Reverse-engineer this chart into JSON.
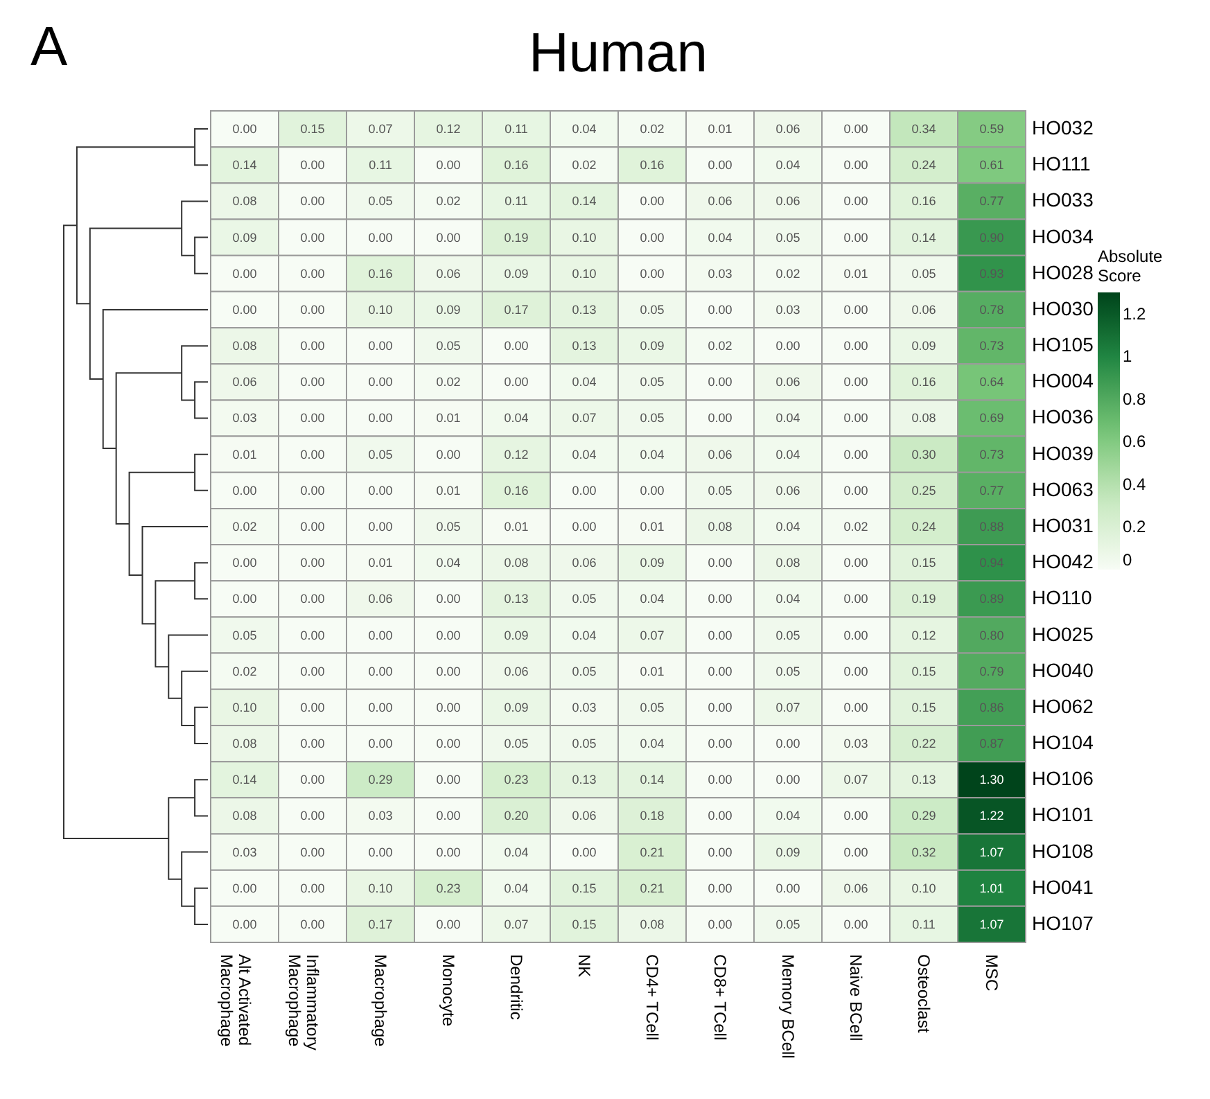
{
  "chart_data": {
    "type": "heatmap",
    "title": "Human",
    "annotations": [
      "A"
    ],
    "legend_title": "Absolute Score",
    "categories": [
      "Alt Activated Macrophage",
      "Inflammatory Macrophage",
      "Macrophage",
      "Monocyte",
      "Dendritic",
      "NK",
      "CD4+ TCell",
      "CD8+ TCell",
      "Memory BCell",
      "Naive BCell",
      "Osteoclast",
      "MSC"
    ],
    "y_categories": [
      "HO032",
      "HO111",
      "HO033",
      "HO034",
      "HO028",
      "HO030",
      "HO105",
      "HO004",
      "HO036",
      "HO039",
      "HO063",
      "HO031",
      "HO042",
      "HO110",
      "HO025",
      "HO040",
      "HO062",
      "HO104",
      "HO106",
      "HO101",
      "HO108",
      "HO041",
      "HO107"
    ],
    "cells": [
      [
        0.0,
        0.15,
        0.07,
        0.12,
        0.11,
        0.04,
        0.02,
        0.01,
        0.06,
        0.0,
        0.34,
        0.59
      ],
      [
        0.14,
        0.0,
        0.11,
        0.0,
        0.16,
        0.02,
        0.16,
        0.0,
        0.04,
        0.0,
        0.24,
        0.61
      ],
      [
        0.08,
        0.0,
        0.05,
        0.02,
        0.11,
        0.14,
        0.0,
        0.06,
        0.06,
        0.0,
        0.16,
        0.77
      ],
      [
        0.09,
        0.0,
        0.0,
        0.0,
        0.19,
        0.1,
        0.0,
        0.04,
        0.05,
        0.0,
        0.14,
        0.9
      ],
      [
        0.0,
        0.0,
        0.16,
        0.06,
        0.09,
        0.1,
        0.0,
        0.03,
        0.02,
        0.01,
        0.05,
        0.93
      ],
      [
        0.0,
        0.0,
        0.1,
        0.09,
        0.17,
        0.13,
        0.05,
        0.0,
        0.03,
        0.0,
        0.06,
        0.78
      ],
      [
        0.08,
        0.0,
        0.0,
        0.05,
        0.0,
        0.13,
        0.09,
        0.02,
        0.0,
        0.0,
        0.09,
        0.73
      ],
      [
        0.06,
        0.0,
        0.0,
        0.02,
        0.0,
        0.04,
        0.05,
        0.0,
        0.06,
        0.0,
        0.16,
        0.64
      ],
      [
        0.03,
        0.0,
        0.0,
        0.01,
        0.04,
        0.07,
        0.05,
        0.0,
        0.04,
        0.0,
        0.08,
        0.69
      ],
      [
        0.01,
        0.0,
        0.05,
        0.0,
        0.12,
        0.04,
        0.04,
        0.06,
        0.04,
        0.0,
        0.3,
        0.73
      ],
      [
        0.0,
        0.0,
        0.0,
        0.01,
        0.16,
        0.0,
        0.0,
        0.05,
        0.06,
        0.0,
        0.25,
        0.77
      ],
      [
        0.02,
        0.0,
        0.0,
        0.05,
        0.01,
        0.0,
        0.01,
        0.08,
        0.04,
        0.02,
        0.24,
        0.88
      ],
      [
        0.0,
        0.0,
        0.01,
        0.04,
        0.08,
        0.06,
        0.09,
        0.0,
        0.08,
        0.0,
        0.15,
        0.94
      ],
      [
        0.0,
        0.0,
        0.06,
        0.0,
        0.13,
        0.05,
        0.04,
        0.0,
        0.04,
        0.0,
        0.19,
        0.89
      ],
      [
        0.05,
        0.0,
        0.0,
        0.0,
        0.09,
        0.04,
        0.07,
        0.0,
        0.05,
        0.0,
        0.12,
        0.8
      ],
      [
        0.02,
        0.0,
        0.0,
        0.0,
        0.06,
        0.05,
        0.01,
        0.0,
        0.05,
        0.0,
        0.15,
        0.79
      ],
      [
        0.1,
        0.0,
        0.0,
        0.0,
        0.09,
        0.03,
        0.05,
        0.0,
        0.07,
        0.0,
        0.15,
        0.86
      ],
      [
        0.08,
        0.0,
        0.0,
        0.0,
        0.05,
        0.05,
        0.04,
        0.0,
        0.0,
        0.03,
        0.22,
        0.87
      ],
      [
        0.14,
        0.0,
        0.29,
        0.0,
        0.23,
        0.13,
        0.14,
        0.0,
        0.0,
        0.07,
        0.13,
        1.3
      ],
      [
        0.08,
        0.0,
        0.03,
        0.0,
        0.2,
        0.06,
        0.18,
        0.0,
        0.04,
        0.0,
        0.29,
        1.22
      ],
      [
        0.03,
        0.0,
        0.0,
        0.0,
        0.04,
        0.0,
        0.21,
        0.0,
        0.09,
        0.0,
        0.32,
        1.07
      ],
      [
        0.0,
        0.0,
        0.1,
        0.23,
        0.04,
        0.15,
        0.21,
        0.0,
        0.0,
        0.06,
        0.1,
        1.01
      ],
      [
        0.0,
        0.0,
        0.17,
        0.0,
        0.07,
        0.15,
        0.08,
        0.0,
        0.05,
        0.0,
        0.11,
        1.07
      ]
    ],
    "cell_labels": [
      [
        "0.00",
        "0.15",
        "0.07",
        "0.12",
        "0.11",
        "0.04",
        "0.02",
        "0.01",
        "0.06",
        "0.00",
        "0.34",
        "0.59"
      ],
      [
        "0.14",
        "0.00",
        "0.11",
        "0.00",
        "0.16",
        "0.02",
        "0.16",
        "0.00",
        "0.04",
        "0.00",
        "0.24",
        "0.61"
      ],
      [
        "0.08",
        "0.00",
        "0.05",
        "0.02",
        "0.11",
        "0.14",
        "0.00",
        "0.06",
        "0.06",
        "0.00",
        "0.16",
        "0.77"
      ],
      [
        "0.09",
        "0.00",
        "0.00",
        "0.00",
        "0.19",
        "0.10",
        "0.00",
        "0.04",
        "0.05",
        "0.00",
        "0.14",
        "0.90"
      ],
      [
        "0.00",
        "0.00",
        "0.16",
        "0.06",
        "0.09",
        "0.10",
        "0.00",
        "0.03",
        "0.02",
        "0.01",
        "0.05",
        "0.93"
      ],
      [
        "0.00",
        "0.00",
        "0.10",
        "0.09",
        "0.17",
        "0.13",
        "0.05",
        "0.00",
        "0.03",
        "0.00",
        "0.06",
        "0.78"
      ],
      [
        "0.08",
        "0.00",
        "0.00",
        "0.05",
        "0.00",
        "0.13",
        "0.09",
        "0.02",
        "0.00",
        "0.00",
        "0.09",
        "0.73"
      ],
      [
        "0.06",
        "0.00",
        "0.00",
        "0.02",
        "0.00",
        "0.04",
        "0.05",
        "0.00",
        "0.06",
        "0.00",
        "0.16",
        "0.64"
      ],
      [
        "0.03",
        "0.00",
        "0.00",
        "0.01",
        "0.04",
        "0.07",
        "0.05",
        "0.00",
        "0.04",
        "0.00",
        "0.08",
        "0.69"
      ],
      [
        "0.01",
        "0.00",
        "0.05",
        "0.00",
        "0.12",
        "0.04",
        "0.04",
        "0.06",
        "0.04",
        "0.00",
        "0.30",
        "0.73"
      ],
      [
        "0.00",
        "0.00",
        "0.00",
        "0.01",
        "0.16",
        "0.00",
        "0.00",
        "0.05",
        "0.06",
        "0.00",
        "0.25",
        "0.77"
      ],
      [
        "0.02",
        "0.00",
        "0.00",
        "0.05",
        "0.01",
        "0.00",
        "0.01",
        "0.08",
        "0.04",
        "0.02",
        "0.24",
        "0.88"
      ],
      [
        "0.00",
        "0.00",
        "0.01",
        "0.04",
        "0.08",
        "0.06",
        "0.09",
        "0.00",
        "0.08",
        "0.00",
        "0.15",
        "0.94"
      ],
      [
        "0.00",
        "0.00",
        "0.06",
        "0.00",
        "0.13",
        "0.05",
        "0.04",
        "0.00",
        "0.04",
        "0.00",
        "0.19",
        "0.89"
      ],
      [
        "0.05",
        "0.00",
        "0.00",
        "0.00",
        "0.09",
        "0.04",
        "0.07",
        "0.00",
        "0.05",
        "0.00",
        "0.12",
        "0.80"
      ],
      [
        "0.02",
        "0.00",
        "0.00",
        "0.00",
        "0.06",
        "0.05",
        "0.01",
        "0.00",
        "0.05",
        "0.00",
        "0.15",
        "0.79"
      ],
      [
        "0.10",
        "0.00",
        "0.00",
        "0.00",
        "0.09",
        "0.03",
        "0.05",
        "0.00",
        "0.07",
        "0.00",
        "0.15",
        "0.86"
      ],
      [
        "0.08",
        "0.00",
        "0.00",
        "0.00",
        "0.05",
        "0.05",
        "0.04",
        "0.00",
        "0.00",
        "0.03",
        "0.22",
        "0.87"
      ],
      [
        "0.14",
        "0.00",
        "0.29",
        "0.00",
        "0.23",
        "0.13",
        "0.14",
        "0.00",
        "0.00",
        "0.07",
        "0.13",
        "1.30"
      ],
      [
        "0.08",
        "0.00",
        "0.03",
        "0.00",
        "0.20",
        "0.06",
        "0.18",
        "0.00",
        "0.04",
        "0.00",
        "0.29",
        "1.22"
      ],
      [
        "0.03",
        "0.00",
        "0.00",
        "0.00",
        "0.04",
        "0.00",
        "0.21",
        "0.00",
        "0.09",
        "0.00",
        "0.32",
        "1.07"
      ],
      [
        "0.00",
        "0.00",
        "0.10",
        "0.23",
        "0.04",
        "0.15",
        "0.21",
        "0.00",
        "0.00",
        "0.06",
        "0.10",
        "1.01"
      ],
      [
        "0.00",
        "0.00",
        "0.17",
        "0.00",
        "0.07",
        "0.15",
        "0.08",
        "0.00",
        "0.05",
        "0.00",
        "0.11",
        "1.07"
      ]
    ],
    "clim": [
      0,
      1.3
    ],
    "cticks": [
      0,
      0.2,
      0.4,
      0.6,
      0.8,
      1,
      1.2
    ],
    "data_labels": true
  }
}
